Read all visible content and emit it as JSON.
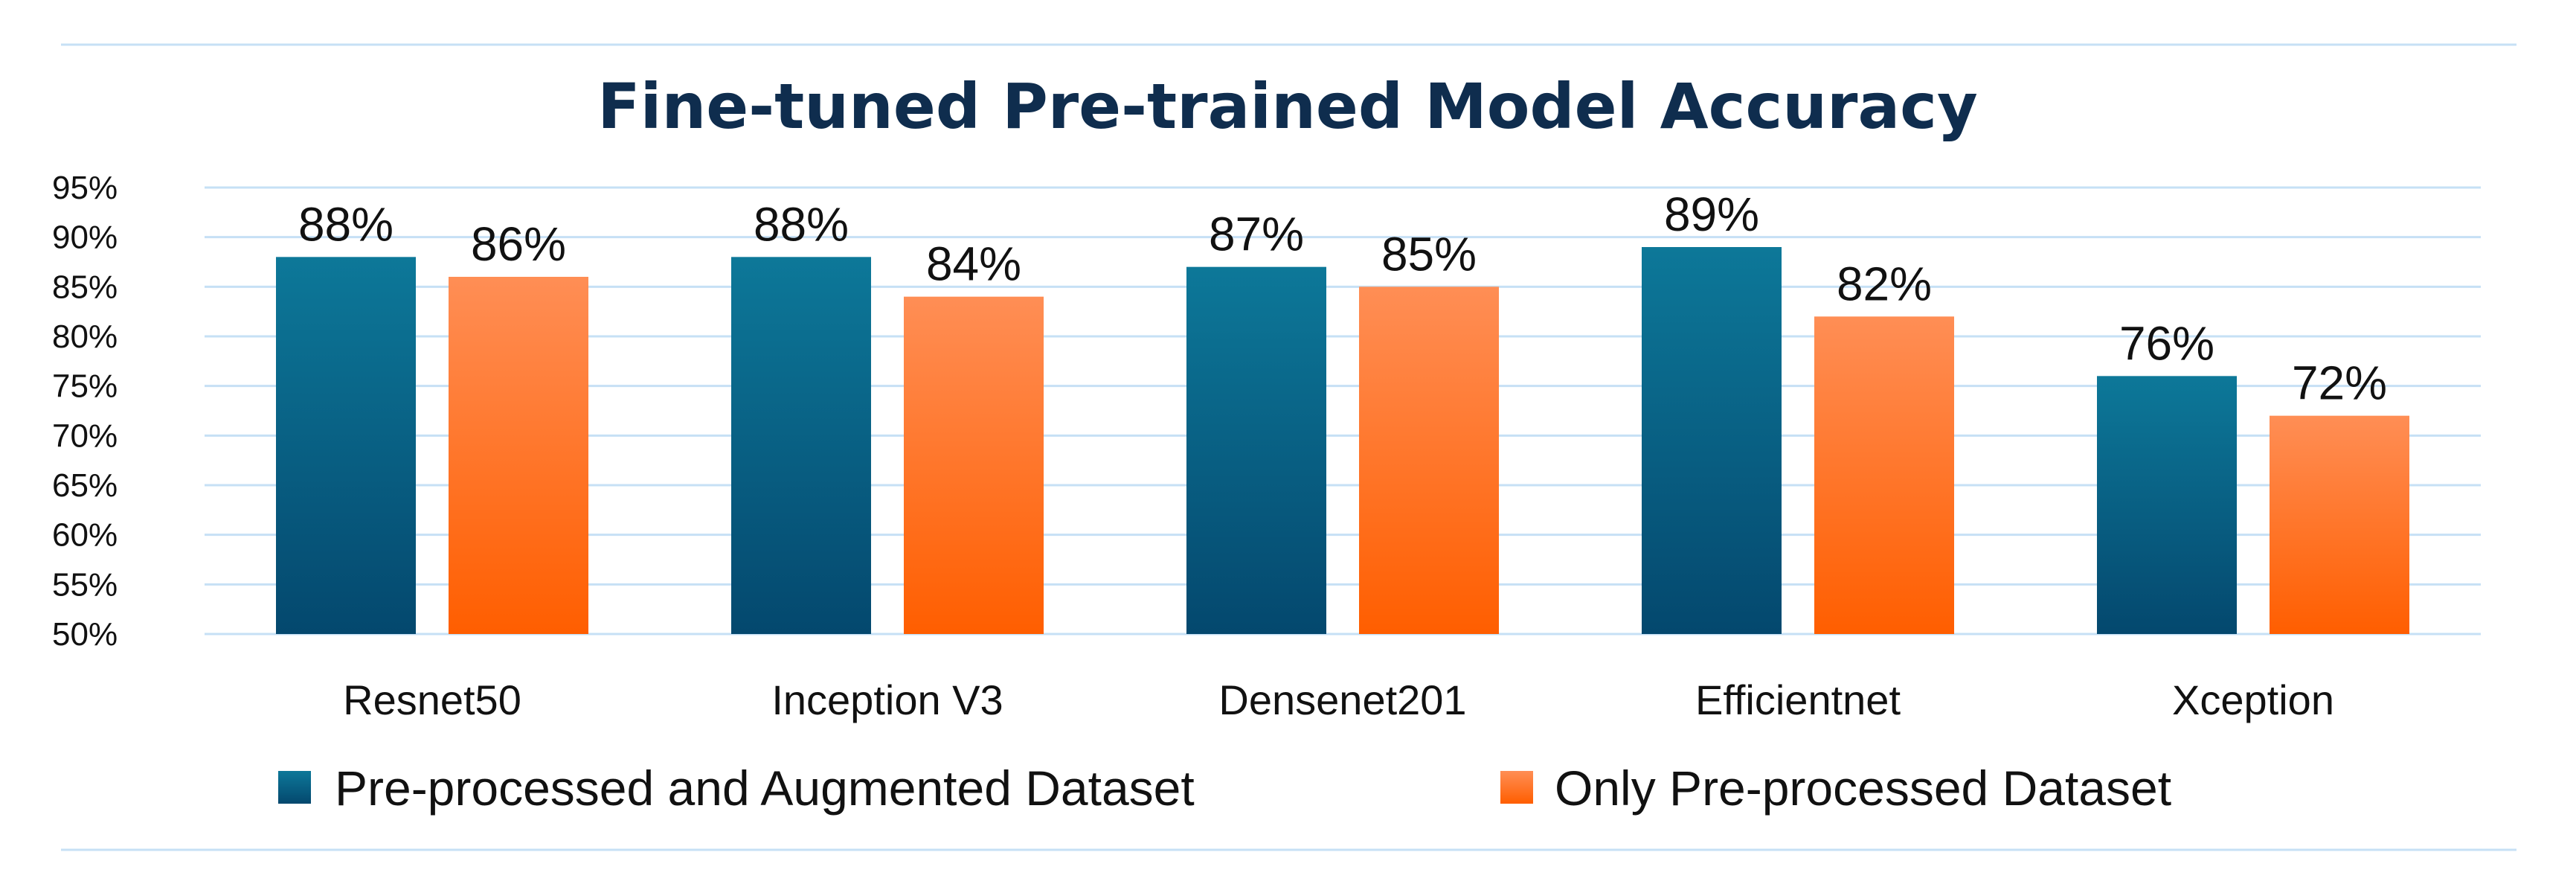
{
  "chart_data": {
    "type": "bar",
    "title": "Fine-tuned Pre-trained Model Accuracy",
    "xlabel": "",
    "ylabel": "",
    "ylim": [
      50,
      95
    ],
    "yticks": [
      50,
      55,
      60,
      65,
      70,
      75,
      80,
      85,
      90,
      95
    ],
    "ytick_labels": [
      "50%",
      "55%",
      "60%",
      "65%",
      "70%",
      "75%",
      "80%",
      "85%",
      "90%",
      "95%"
    ],
    "grid": true,
    "legend_position": "bottom",
    "categories": [
      "Resnet50",
      "Inception V3",
      "Densenet201",
      "Efficientnet",
      "Xception"
    ],
    "series": [
      {
        "name": "Pre-processed and Augmented Dataset",
        "values": [
          88,
          88,
          87,
          89,
          76
        ],
        "labels": [
          "88%",
          "88%",
          "87%",
          "89%",
          "76%"
        ],
        "color": "#0b5d80",
        "color_light": "#0d7899",
        "color_dark": "#04486e"
      },
      {
        "name": "Only Pre-processed Dataset",
        "values": [
          86,
          84,
          85,
          82,
          72
        ],
        "labels": [
          "86%",
          "84%",
          "85%",
          "82%",
          "72%"
        ],
        "color": "#ff6a1a",
        "color_light": "#ff8e55",
        "color_dark": "#ff5e00"
      }
    ],
    "colors": {
      "title": "#0f2d4e",
      "grid": "#c6e0f5",
      "frame_lines": "#c6e0f5"
    }
  }
}
